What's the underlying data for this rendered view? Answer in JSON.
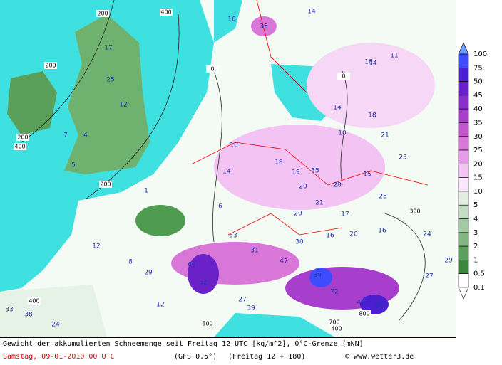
{
  "legend": [
    {
      "label": "100",
      "color": "#6f9bff"
    },
    {
      "label": "75",
      "color": "#3d4cff"
    },
    {
      "label": "50",
      "color": "#4a1fd0"
    },
    {
      "label": "45",
      "color": "#6a22c8"
    },
    {
      "label": "40",
      "color": "#8a2fc8"
    },
    {
      "label": "35",
      "color": "#a83fcc"
    },
    {
      "label": "30",
      "color": "#c455cc"
    },
    {
      "label": "25",
      "color": "#d877d8"
    },
    {
      "label": "20",
      "color": "#e89be8"
    },
    {
      "label": "15",
      "color": "#f3c4f3"
    },
    {
      "label": "10",
      "color": "#fbe6fb"
    },
    {
      "label": "5",
      "color": "#e3eee3"
    },
    {
      "label": "4",
      "color": "#c4dcc4"
    },
    {
      "label": "3",
      "color": "#a3caa3"
    },
    {
      "label": "2",
      "color": "#80b680"
    },
    {
      "label": "1",
      "color": "#5a9f5a"
    },
    {
      "label": "0.5",
      "color": "#3b873b"
    },
    {
      "label": "0.1",
      "color": "#ffffff"
    }
  ],
  "map_labels": [
    "36",
    "16",
    "14",
    "17",
    "25",
    "12",
    "4",
    "7",
    "5",
    "16",
    "14",
    "18",
    "19",
    "35",
    "10",
    "14",
    "18",
    "21",
    "23",
    "15",
    "28",
    "26",
    "20",
    "21",
    "17",
    "20",
    "16",
    "20",
    "16",
    "24",
    "6",
    "1",
    "33",
    "30",
    "31",
    "47",
    "61",
    "69",
    "72",
    "52",
    "47",
    "52",
    "29",
    "8",
    "12",
    "27",
    "29",
    "12",
    "27",
    "39",
    "33",
    "38",
    "24",
    "18",
    "11",
    "14"
  ],
  "contour_labels": [
    "200",
    "400",
    "200",
    "200",
    "400",
    "0",
    "0",
    "200",
    "400",
    "700",
    "400",
    "300",
    "800",
    "500"
  ],
  "footer": {
    "line1": "Gewicht der akkumulierten Schneemenge seit Freitag 12 UTC [kg/m^2], 0°C-Grenze [mNN]",
    "date": "Samstag, 09-01-2010  00 UTC",
    "model": "(GFS 0.5°)",
    "run": "(Freitag 12 + 180)",
    "credit": "© www.wetter3.de"
  }
}
